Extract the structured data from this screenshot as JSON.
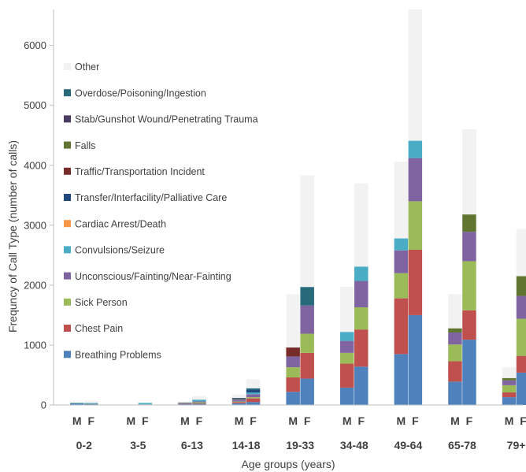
{
  "chart_data": {
    "type": "bar",
    "stacked": true,
    "xlabel": "Age groups (years)",
    "ylabel": "Frequncy of Call Type  (number of calls)",
    "ylim": [
      0,
      6600
    ],
    "yticks": [
      0,
      1000,
      2000,
      3000,
      4000,
      5000,
      6000
    ],
    "grid": false,
    "legend_position": "left-inside",
    "age_groups": [
      "0-2",
      "3-5",
      "6-13",
      "14-18",
      "19-33",
      "34-48",
      "49-64",
      "65-78",
      "79+"
    ],
    "sexes": [
      "M",
      "F"
    ],
    "series_order_bottom_to_top": [
      "Breathing Problems",
      "Chest Pain",
      "Sick Person",
      "Unconscious/Fainting/Near-Fainting",
      "Convulsions/Seizure",
      "Cardiac Arrest/Death",
      "Transfer/Interfacility/Palliative Care",
      "Traffic/Transportation Incident",
      "Falls",
      "Stab/Gunshot Wound/Penetrating Trauma",
      "Overdose/Poisoning/Ingestion",
      "Other"
    ],
    "series": [
      {
        "name": "Breathing Problems",
        "color": "#4f81bd",
        "M": [
          30,
          5,
          20,
          30,
          220,
          290,
          850,
          390,
          130
        ],
        "F": [
          20,
          5,
          20,
          50,
          440,
          640,
          1500,
          1090,
          540
        ]
      },
      {
        "name": "Chest Pain",
        "color": "#c0504d",
        "M": [
          0,
          0,
          10,
          20,
          240,
          400,
          930,
          340,
          80
        ],
        "F": [
          0,
          0,
          10,
          60,
          430,
          620,
          1090,
          490,
          280
        ]
      },
      {
        "name": "Sick Person",
        "color": "#9bbb59",
        "M": [
          5,
          0,
          5,
          10,
          170,
          180,
          420,
          280,
          120
        ],
        "F": [
          5,
          5,
          15,
          20,
          320,
          370,
          810,
          820,
          620
        ]
      },
      {
        "name": "Unconscious/Fainting/Near-Fainting",
        "color": "#8064a2",
        "M": [
          0,
          0,
          5,
          20,
          180,
          200,
          380,
          200,
          80
        ],
        "F": [
          0,
          0,
          15,
          50,
          470,
          440,
          720,
          490,
          380
        ]
      },
      {
        "name": "Convulsions/Seizure",
        "color": "#4bacc6",
        "M": [
          5,
          0,
          5,
          10,
          0,
          150,
          200,
          0,
          0
        ],
        "F": [
          10,
          25,
          30,
          30,
          0,
          240,
          290,
          0,
          0
        ]
      },
      {
        "name": "Cardiac Arrest/Death",
        "color": "#f79646",
        "M": [
          0,
          0,
          0,
          0,
          0,
          0,
          0,
          0,
          0
        ],
        "F": [
          0,
          0,
          0,
          0,
          0,
          0,
          0,
          0,
          0
        ]
      },
      {
        "name": "Transfer/Interfacility/Palliative Care",
        "color": "#1f497d",
        "M": [
          0,
          0,
          0,
          0,
          0,
          0,
          0,
          0,
          0
        ],
        "F": [
          0,
          0,
          0,
          40,
          0,
          0,
          0,
          0,
          0
        ]
      },
      {
        "name": "Traffic/Transportation Incident",
        "color": "#772c2a",
        "M": [
          0,
          0,
          0,
          10,
          150,
          0,
          0,
          0,
          0
        ],
        "F": [
          0,
          0,
          0,
          0,
          0,
          0,
          0,
          0,
          0
        ]
      },
      {
        "name": "Falls",
        "color": "#5f7530",
        "M": [
          0,
          0,
          0,
          0,
          0,
          0,
          0,
          70,
          40
        ],
        "F": [
          0,
          0,
          0,
          0,
          0,
          0,
          0,
          290,
          330
        ]
      },
      {
        "name": "Stab/Gunshot Wound/Penetrating Trauma",
        "color": "#4d3b62",
        "M": [
          0,
          0,
          0,
          10,
          0,
          0,
          0,
          0,
          0
        ],
        "F": [
          0,
          0,
          0,
          0,
          0,
          0,
          0,
          0,
          0
        ]
      },
      {
        "name": "Overdose/Poisoning/Ingestion",
        "color": "#276a7c",
        "M": [
          0,
          0,
          0,
          10,
          0,
          0,
          0,
          0,
          0
        ],
        "F": [
          0,
          0,
          0,
          30,
          310,
          0,
          0,
          0,
          0
        ]
      },
      {
        "name": "Other",
        "color": "#f2f2f2",
        "M": [
          20,
          0,
          10,
          60,
          890,
          750,
          1280,
          570,
          180
        ],
        "F": [
          35,
          0,
          60,
          150,
          1860,
          1390,
          2190,
          1420,
          790
        ]
      }
    ]
  }
}
